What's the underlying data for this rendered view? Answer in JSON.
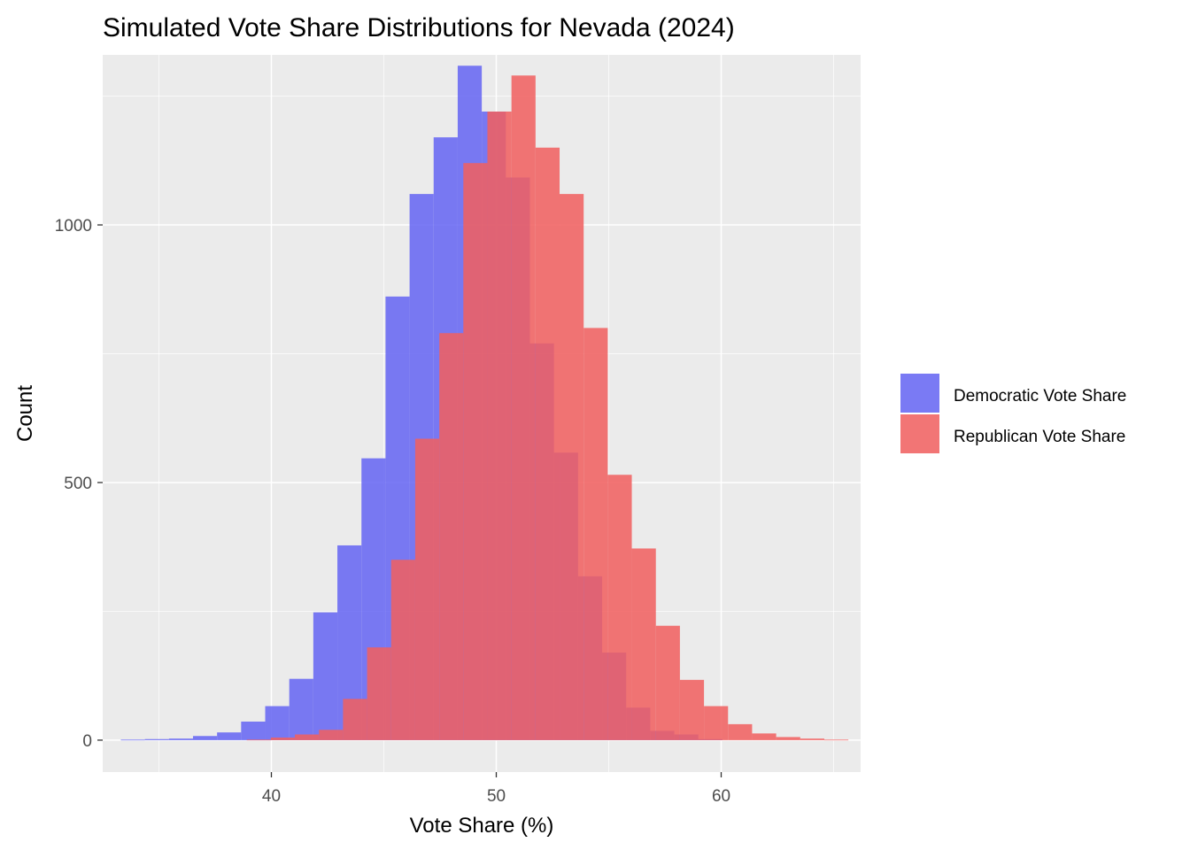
{
  "chart_data": {
    "type": "histogram",
    "title": "Simulated Vote Share Distributions for Nevada (2024)",
    "xlabel": "Vote Share (%)",
    "ylabel": "Count",
    "xlim": [
      32.5,
      66.2
    ],
    "ylim": [
      -62,
      1330
    ],
    "x_ticks": [
      40,
      50,
      60
    ],
    "y_ticks": [
      0,
      500,
      1000
    ],
    "grid": true,
    "bin_width": 1.07,
    "legend_position": "right",
    "series": [
      {
        "name": "Democratic Vote Share",
        "color": "#6666f2",
        "bins": [
          {
            "x": 33.84,
            "count": 1
          },
          {
            "x": 34.91,
            "count": 2
          },
          {
            "x": 35.98,
            "count": 3
          },
          {
            "x": 37.05,
            "count": 8
          },
          {
            "x": 38.12,
            "count": 15
          },
          {
            "x": 39.19,
            "count": 36
          },
          {
            "x": 40.26,
            "count": 66
          },
          {
            "x": 41.33,
            "count": 119
          },
          {
            "x": 42.4,
            "count": 248
          },
          {
            "x": 43.47,
            "count": 378
          },
          {
            "x": 44.54,
            "count": 547
          },
          {
            "x": 45.61,
            "count": 861
          },
          {
            "x": 46.68,
            "count": 1060
          },
          {
            "x": 47.75,
            "count": 1170
          },
          {
            "x": 48.82,
            "count": 1309
          },
          {
            "x": 49.89,
            "count": 1220
          },
          {
            "x": 50.96,
            "count": 1092
          },
          {
            "x": 52.03,
            "count": 770
          },
          {
            "x": 53.1,
            "count": 558
          },
          {
            "x": 54.17,
            "count": 318
          },
          {
            "x": 55.24,
            "count": 170
          },
          {
            "x": 56.31,
            "count": 63
          },
          {
            "x": 57.38,
            "count": 18
          },
          {
            "x": 58.45,
            "count": 11
          },
          {
            "x": 59.52,
            "count": 2
          }
        ]
      },
      {
        "name": "Republican Vote Share",
        "color": "#f06060",
        "bins": [
          {
            "x": 39.44,
            "count": 1
          },
          {
            "x": 40.51,
            "count": 5
          },
          {
            "x": 41.58,
            "count": 11
          },
          {
            "x": 42.65,
            "count": 20
          },
          {
            "x": 43.72,
            "count": 80
          },
          {
            "x": 44.79,
            "count": 180
          },
          {
            "x": 45.86,
            "count": 350
          },
          {
            "x": 46.93,
            "count": 585
          },
          {
            "x": 48.0,
            "count": 790
          },
          {
            "x": 49.07,
            "count": 1120
          },
          {
            "x": 50.14,
            "count": 1220
          },
          {
            "x": 51.21,
            "count": 1290
          },
          {
            "x": 52.28,
            "count": 1150
          },
          {
            "x": 53.35,
            "count": 1060
          },
          {
            "x": 54.42,
            "count": 800
          },
          {
            "x": 55.49,
            "count": 515
          },
          {
            "x": 56.56,
            "count": 372
          },
          {
            "x": 57.63,
            "count": 222
          },
          {
            "x": 58.7,
            "count": 117
          },
          {
            "x": 59.77,
            "count": 66
          },
          {
            "x": 60.84,
            "count": 31
          },
          {
            "x": 61.91,
            "count": 13
          },
          {
            "x": 62.98,
            "count": 6
          },
          {
            "x": 64.05,
            "count": 3
          },
          {
            "x": 65.12,
            "count": 1
          }
        ]
      }
    ]
  }
}
